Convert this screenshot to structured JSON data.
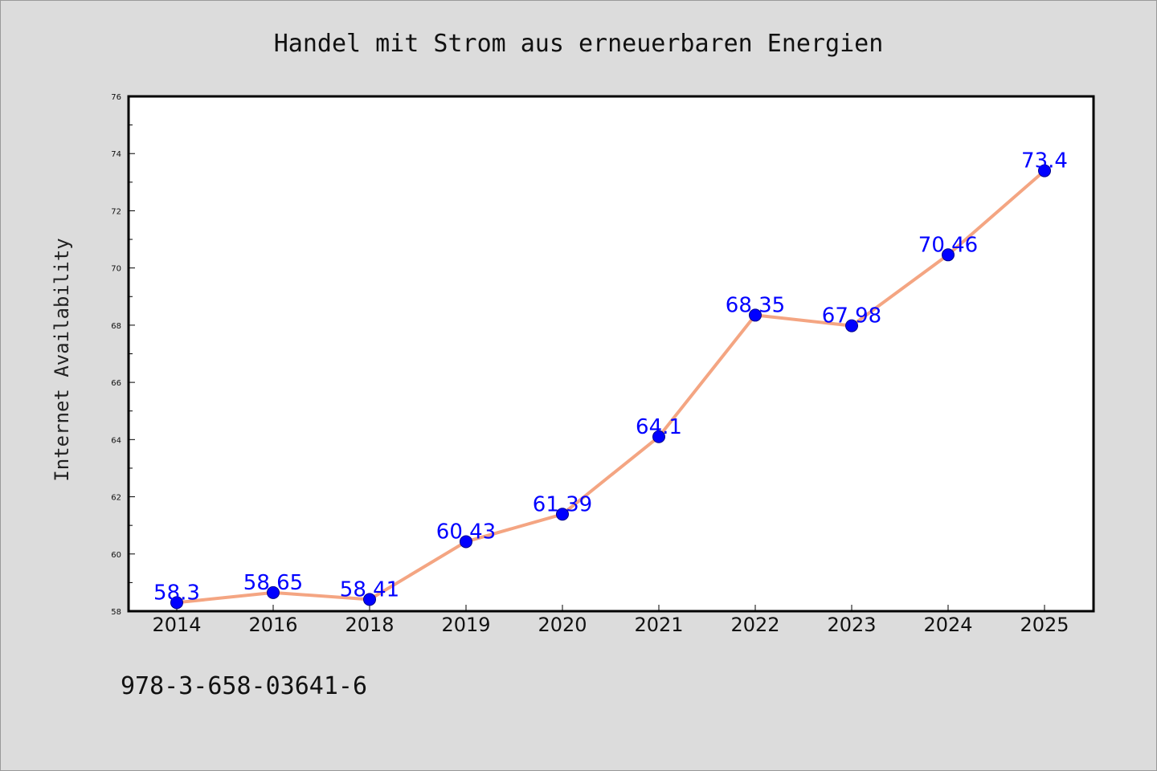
{
  "chart_data": {
    "type": "line",
    "title": "Handel mit Strom aus erneuerbaren Energien",
    "xlabel": "",
    "ylabel": "Internet Availability",
    "categories": [
      "2014",
      "2016",
      "2018",
      "2019",
      "2020",
      "2021",
      "2022",
      "2023",
      "2024",
      "2025"
    ],
    "series": [
      {
        "values": [
          58.3,
          58.65,
          58.41,
          60.43,
          61.39,
          64.1,
          68.35,
          67.98,
          70.46,
          73.4
        ],
        "data_labels": [
          "58.3",
          "58.65",
          "58.41",
          "60.43",
          "61.39",
          "64.1",
          "68.35",
          "67.98",
          "70.46",
          "73.4"
        ]
      }
    ],
    "ylim": [
      58,
      76
    ],
    "yticks": [
      "58",
      "60",
      "62",
      "64",
      "66",
      "68",
      "70",
      "72",
      "74",
      "76"
    ],
    "grid": false,
    "legend": "none",
    "colors": {
      "line": "#f4a582",
      "marker": "#0000ff",
      "label": "#0000ff",
      "background": "#dcdcdc",
      "plot_bg": "#ffffff"
    }
  },
  "footer_text": "978-3-658-03641-6"
}
